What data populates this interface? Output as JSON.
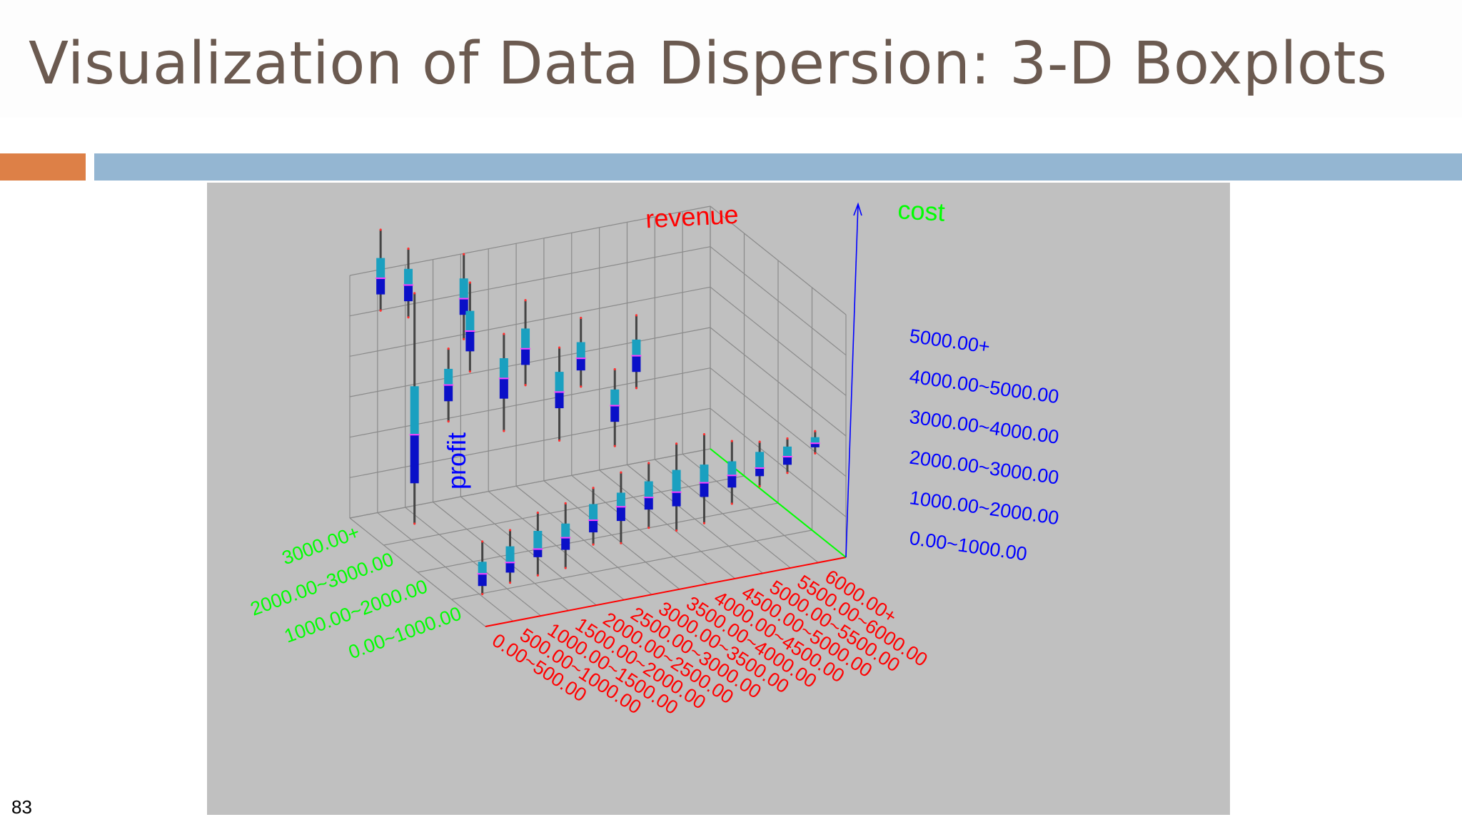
{
  "slide": {
    "title": "Visualization of Data Dispersion: 3-D Boxplots",
    "page_number": "83"
  },
  "colors": {
    "title": "#6b5a50",
    "accent_orange": "#dd8047",
    "accent_blue": "#94b6d2",
    "figure_bg": "#c0c0c0",
    "revenue_axis": "#ff0000",
    "cost_axis": "#00ff00",
    "profit_axis": "#0000ff",
    "box_upper": "#1aa0c0",
    "box_lower": "#0a10c8",
    "whisker": "#444444",
    "median": "#ff40ff"
  },
  "chart_data": {
    "type": "boxplot-3d",
    "axis_titles": {
      "x": "revenue",
      "y": "cost",
      "z": "profit"
    },
    "revenue_categories": [
      "0.00~500.00",
      "500.00~1000.00",
      "1000.00~1500.00",
      "1500.00~2000.00",
      "2000.00~2500.00",
      "2500.00~3000.00",
      "3000.00~3500.00",
      "3500.00~4000.00",
      "4000.00~4500.00",
      "4500.00~5000.00",
      "5000.00~5500.00",
      "5500.00~6000.00",
      "6000.00+"
    ],
    "cost_categories": [
      "0.00~1000.00",
      "1000.00~2000.00",
      "2000.00~3000.00",
      "3000.00+"
    ],
    "profit_categories": [
      "0.00~1000.00",
      "1000.00~2000.00",
      "2000.00~3000.00",
      "3000.00~4000.00",
      "4000.00~5000.00",
      "5000.00+"
    ],
    "boxes": [
      {
        "r": 0,
        "c": 0,
        "min": 400,
        "q1": 600,
        "med": 900,
        "q3": 1200,
        "max": 1700
      },
      {
        "r": 1,
        "c": 0,
        "min": 550,
        "q1": 800,
        "med": 1050,
        "q3": 1450,
        "max": 1850
      },
      {
        "r": 2,
        "c": 0,
        "min": 600,
        "q1": 1050,
        "med": 1250,
        "q3": 1700,
        "max": 2150
      },
      {
        "r": 3,
        "c": 0,
        "min": 650,
        "q1": 1100,
        "med": 1400,
        "q3": 1750,
        "max": 2250
      },
      {
        "r": 4,
        "c": 0,
        "min": 1100,
        "q1": 1400,
        "med": 1700,
        "q3": 2100,
        "max": 2500
      },
      {
        "r": 5,
        "c": 0,
        "min": 1000,
        "q1": 1550,
        "med": 1900,
        "q3": 2250,
        "max": 2750
      },
      {
        "r": 6,
        "c": 0,
        "min": 1250,
        "q1": 1700,
        "med": 2000,
        "q3": 2400,
        "max": 2850
      },
      {
        "r": 7,
        "c": 0,
        "min": 1050,
        "q1": 1650,
        "med": 2000,
        "q3": 2550,
        "max": 3200
      },
      {
        "r": 8,
        "c": 0,
        "min": 1100,
        "q1": 1750,
        "med": 2100,
        "q3": 2550,
        "max": 3300
      },
      {
        "r": 9,
        "c": 0,
        "min": 1450,
        "q1": 1850,
        "med": 2150,
        "q3": 2500,
        "max": 3000
      },
      {
        "r": 10,
        "c": 0,
        "min": 1750,
        "q1": 2000,
        "med": 2200,
        "q3": 2600,
        "max": 2850
      },
      {
        "r": 11,
        "c": 0,
        "min": 1950,
        "q1": 2150,
        "med": 2350,
        "q3": 2600,
        "max": 2800
      },
      {
        "r": 12,
        "c": 0,
        "min": 2300,
        "q1": 2450,
        "med": 2550,
        "q3": 2700,
        "max": 2850
      },
      {
        "r": 0,
        "c": 1,
        "min": 4000,
        "q1": 4500,
        "med": 4900,
        "q3": 5300,
        "max": 5800
      },
      {
        "r": 2,
        "c": 1,
        "min": 3500,
        "q1": 4300,
        "med": 4800,
        "q3": 5300,
        "max": 5900
      },
      {
        "r": 4,
        "c": 1,
        "min": 3000,
        "q1": 3800,
        "med": 4200,
        "q3": 4700,
        "max": 5300
      },
      {
        "r": 6,
        "c": 1,
        "min": 2600,
        "q1": 3200,
        "med": 3600,
        "q3": 4000,
        "max": 4500
      },
      {
        "r": 0,
        "c": 2,
        "min": 800,
        "q1": 1800,
        "med": 3000,
        "q3": 4200,
        "max": 6500
      },
      {
        "r": 2,
        "c": 2,
        "min": 4300,
        "q1": 4800,
        "med": 5300,
        "q3": 5800,
        "max": 6500
      },
      {
        "r": 4,
        "c": 2,
        "min": 3700,
        "q1": 4200,
        "med": 4600,
        "q3": 5100,
        "max": 5800
      },
      {
        "r": 6,
        "c": 2,
        "min": 3400,
        "q1": 3800,
        "med": 4100,
        "q3": 4500,
        "max": 5100
      },
      {
        "r": 8,
        "c": 2,
        "min": 3100,
        "q1": 3500,
        "med": 3900,
        "q3": 4300,
        "max": 4900
      },
      {
        "r": 0,
        "c": 3,
        "min": 5400,
        "q1": 5800,
        "med": 6200,
        "q3": 6700,
        "max": 7400
      },
      {
        "r": 1,
        "c": 3,
        "min": 5100,
        "q1": 5500,
        "med": 5900,
        "q3": 6300,
        "max": 6800
      },
      {
        "r": 3,
        "c": 3,
        "min": 4300,
        "q1": 4900,
        "med": 5300,
        "q3": 5800,
        "max": 6400
      }
    ]
  }
}
